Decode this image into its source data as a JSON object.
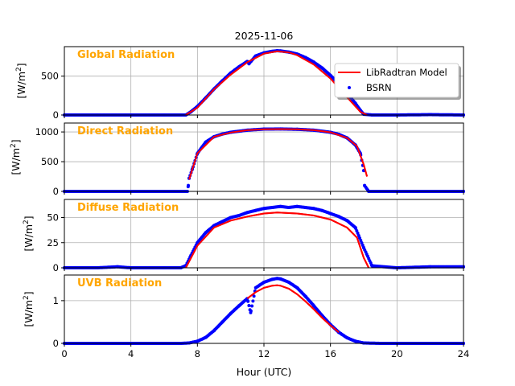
{
  "figure": {
    "title": "2025-11-06",
    "xlabel": "Hour (UTC)",
    "legend": {
      "model": "LibRadtran Model",
      "obs": "BSRN",
      "placement": "upper-right of first panel"
    }
  },
  "chart_data": [
    {
      "type": "line",
      "title": "Global Radiation",
      "ylabel": "[W/m2]",
      "ylabel_html": [
        "[W/m",
        "2",
        "]"
      ],
      "xlim": [
        0,
        24
      ],
      "ylim": [
        0,
        880
      ],
      "xticks": [
        0,
        4,
        8,
        12,
        16,
        20,
        24
      ],
      "yticks": [
        0,
        500
      ],
      "grid": true,
      "series": [
        {
          "name": "LibRadtran Model",
          "color": "#ff0000",
          "x": [
            7.3,
            8,
            9,
            10,
            11,
            12,
            12.8,
            13.5,
            14,
            15,
            16,
            17,
            17.8,
            18.2
          ],
          "y": [
            0,
            95,
            330,
            520,
            680,
            790,
            820,
            805,
            770,
            650,
            470,
            230,
            40,
            0
          ]
        },
        {
          "name": "BSRN",
          "color": "#0000ff",
          "x": [
            0,
            2,
            4,
            6,
            7,
            7.3,
            7.6,
            8,
            8.5,
            9,
            9.5,
            10,
            10.5,
            11,
            11.1,
            11.5,
            12,
            12.5,
            12.8,
            13,
            13.5,
            14,
            14.5,
            15,
            15.5,
            16,
            16.5,
            17,
            17.5,
            17.8,
            18,
            18.5,
            20,
            22,
            24
          ],
          "y": [
            0,
            0,
            0,
            0,
            0,
            0,
            40,
            110,
            220,
            335,
            440,
            540,
            620,
            690,
            660,
            760,
            800,
            820,
            828,
            825,
            810,
            785,
            740,
            680,
            605,
            510,
            400,
            280,
            150,
            60,
            10,
            0,
            0,
            5,
            0
          ]
        }
      ]
    },
    {
      "type": "line",
      "title": "Direct Radiation",
      "ylabel": "[W/m2]",
      "ylabel_html": [
        "[W/m",
        "2",
        "]"
      ],
      "xlim": [
        0,
        24
      ],
      "ylim": [
        0,
        1150
      ],
      "xticks": [
        0,
        4,
        8,
        12,
        16,
        20,
        24
      ],
      "yticks": [
        0,
        500,
        1000
      ],
      "grid": true,
      "series": [
        {
          "name": "LibRadtran Model",
          "color": "#ff0000",
          "x": [
            7.5,
            8,
            9,
            10,
            11,
            12,
            13,
            14,
            15,
            16,
            17,
            17.6,
            18,
            18.2
          ],
          "y": [
            200,
            640,
            920,
            990,
            1030,
            1045,
            1048,
            1045,
            1030,
            995,
            900,
            760,
            450,
            250
          ]
        },
        {
          "name": "BSRN",
          "color": "#0000ff",
          "x": [
            0,
            2,
            4,
            6,
            7,
            7.4,
            7.45,
            7.5,
            7.7,
            8,
            8.5,
            9,
            9.5,
            10,
            11,
            12,
            13,
            14,
            15,
            16,
            16.5,
            17,
            17.5,
            17.8,
            18,
            18.05,
            18.3,
            20,
            22,
            24
          ],
          "y": [
            0,
            0,
            0,
            0,
            0,
            0,
            100,
            220,
            380,
            640,
            830,
            920,
            965,
            995,
            1030,
            1048,
            1050,
            1045,
            1030,
            995,
            960,
            900,
            780,
            640,
            350,
            100,
            0,
            0,
            0,
            0
          ]
        }
      ]
    },
    {
      "type": "line",
      "title": "Diffuse Radiation",
      "ylabel": "[W/m2]",
      "ylabel_html": [
        "[W/m",
        "2",
        "]"
      ],
      "xlim": [
        0,
        24
      ],
      "ylim": [
        0,
        68
      ],
      "xticks": [
        0,
        4,
        8,
        12,
        16,
        20,
        24
      ],
      "yticks": [
        0,
        25,
        50
      ],
      "grid": true,
      "series": [
        {
          "name": "LibRadtran Model",
          "color": "#ff0000",
          "x": [
            7.3,
            8,
            9,
            10,
            11,
            12,
            12.8,
            14,
            15,
            16,
            17,
            17.6,
            18,
            18.3
          ],
          "y": [
            0,
            22,
            40,
            47,
            51,
            54,
            55,
            54,
            52,
            48,
            40,
            30,
            10,
            0
          ]
        },
        {
          "name": "BSRN",
          "color": "#0000ff",
          "x": [
            0,
            2,
            3.2,
            4,
            6,
            7,
            7.3,
            7.6,
            8,
            8.5,
            9,
            9.5,
            10,
            10.5,
            11,
            11.5,
            12,
            12.5,
            13,
            13.5,
            14,
            14.5,
            15,
            15.5,
            16,
            16.5,
            17,
            17.5,
            18,
            18.5,
            20,
            22,
            24
          ],
          "y": [
            0,
            0,
            1,
            0,
            0,
            0,
            2,
            12,
            25,
            35,
            42,
            46,
            50,
            52,
            55,
            57,
            59,
            60,
            61,
            60,
            61,
            60,
            59,
            57,
            54,
            51,
            47,
            40,
            20,
            2,
            0,
            1,
            1
          ]
        }
      ]
    },
    {
      "type": "line",
      "title": "UVB Radiation",
      "ylabel": "[W/m2]",
      "ylabel_html": [
        "[W/m",
        "2",
        "]"
      ],
      "xlim": [
        0,
        24
      ],
      "ylim": [
        0,
        1.6
      ],
      "xticks": [
        0,
        4,
        8,
        12,
        16,
        20,
        24
      ],
      "yticks": [
        0,
        1
      ],
      "grid": true,
      "series": [
        {
          "name": "LibRadtran Model",
          "color": "#ff0000",
          "x": [
            11,
            11.5,
            12,
            12.5,
            12.8,
            13,
            13.5,
            14,
            14.5,
            15,
            15.5,
            16,
            16.5
          ],
          "y": [
            1.05,
            1.2,
            1.3,
            1.35,
            1.36,
            1.35,
            1.28,
            1.15,
            0.98,
            0.8,
            0.6,
            0.42,
            0.26
          ]
        },
        {
          "name": "BSRN",
          "color": "#0000ff",
          "x": [
            0,
            2,
            4,
            6,
            7,
            7.5,
            8,
            8.5,
            9,
            9.5,
            10,
            10.5,
            11,
            11.2,
            11.5,
            12,
            12.5,
            12.8,
            13,
            13.5,
            14,
            14.5,
            15,
            15.5,
            16,
            16.5,
            17,
            17.5,
            18,
            19,
            20,
            22,
            24
          ],
          "y": [
            0,
            0,
            0,
            0,
            0,
            0.01,
            0.05,
            0.14,
            0.3,
            0.5,
            0.7,
            0.88,
            1.05,
            0.72,
            1.3,
            1.43,
            1.5,
            1.52,
            1.51,
            1.43,
            1.3,
            1.1,
            0.88,
            0.65,
            0.44,
            0.26,
            0.13,
            0.05,
            0.01,
            0,
            0,
            0,
            0
          ]
        }
      ]
    }
  ]
}
